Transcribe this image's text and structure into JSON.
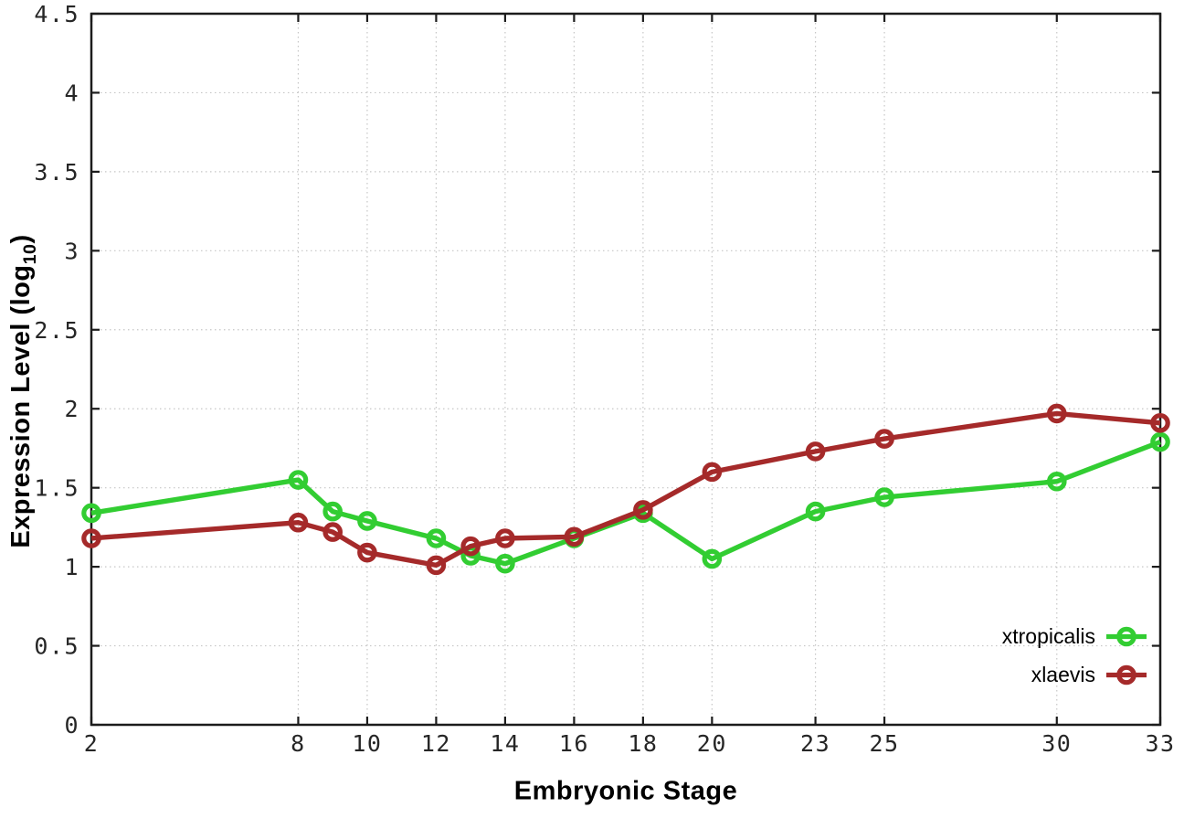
{
  "chart_data": {
    "type": "line",
    "title": "",
    "xlabel": "Embryonic Stage",
    "ylabel": "Expression Level (log10)",
    "ylabel_main": "Expression Level (log",
    "ylabel_sub": "10",
    "ylabel_close": ")",
    "xlim": [
      2,
      33
    ],
    "ylim": [
      0,
      4.5
    ],
    "x_ticks": [
      2,
      8,
      10,
      12,
      14,
      16,
      18,
      20,
      23,
      25,
      30,
      33
    ],
    "y_ticks": [
      0,
      0.5,
      1,
      1.5,
      2,
      2.5,
      3,
      3.5,
      4,
      4.5
    ],
    "grid": true,
    "legend_position": "inside-bottom-right",
    "axis_color": "#1c1c1c",
    "grid_color": "#c6c6c6",
    "tick_label_color": "#262626",
    "series": [
      {
        "name": "xtropicalis",
        "color": "#32cd32",
        "x": [
          2,
          8,
          9,
          10,
          12,
          13,
          14,
          16,
          18,
          20,
          23,
          25,
          30,
          33
        ],
        "y": [
          1.34,
          1.55,
          1.35,
          1.29,
          1.18,
          1.07,
          1.02,
          1.18,
          1.34,
          1.05,
          1.35,
          1.44,
          1.54,
          1.79
        ]
      },
      {
        "name": "xlaevis",
        "color": "#a52a2a",
        "x": [
          2,
          8,
          9,
          10,
          12,
          13,
          14,
          16,
          18,
          20,
          23,
          25,
          30,
          33
        ],
        "y": [
          1.18,
          1.28,
          1.22,
          1.09,
          1.01,
          1.13,
          1.18,
          1.19,
          1.36,
          1.6,
          1.73,
          1.81,
          1.97,
          1.91
        ]
      }
    ]
  }
}
